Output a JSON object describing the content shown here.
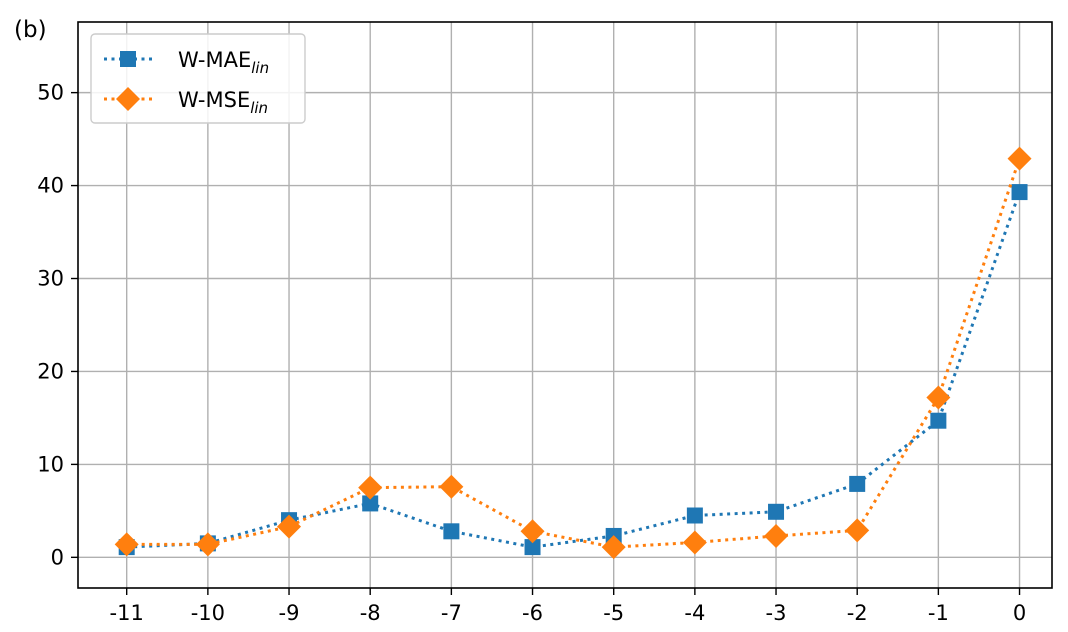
{
  "panel_label": "(b)",
  "chart_data": {
    "type": "line",
    "title": "",
    "xlabel": "",
    "ylabel": "",
    "x": [
      -11,
      -10,
      -9,
      -8,
      -7,
      -6,
      -5,
      -4,
      -3,
      -2,
      -1,
      0
    ],
    "xticks": [
      "-11",
      "-10",
      "-9",
      "-8",
      "-7",
      "-6",
      "-5",
      "-4",
      "-3",
      "-2",
      "-1",
      "0"
    ],
    "yticks": [
      0,
      10,
      20,
      30,
      40,
      50
    ],
    "ylim": [
      -3.3,
      57.6
    ],
    "xlim": [
      -11.6,
      0.4
    ],
    "grid": true,
    "legend_position": "upper-left",
    "series": [
      {
        "name": "W-MAE",
        "name_subscript": "lin",
        "color": "#1f77b4",
        "marker": "square",
        "linestyle": "dotted",
        "values": [
          1.1,
          1.5,
          4.0,
          5.8,
          2.8,
          1.1,
          2.3,
          4.5,
          4.9,
          7.9,
          14.7,
          39.3
        ]
      },
      {
        "name": "W-MSE",
        "name_subscript": "lin",
        "color": "#ff7f0e",
        "marker": "diamond",
        "linestyle": "dotted",
        "values": [
          1.4,
          1.4,
          3.3,
          7.5,
          7.6,
          2.8,
          1.1,
          1.6,
          2.3,
          2.9,
          17.2,
          42.9
        ]
      }
    ]
  }
}
